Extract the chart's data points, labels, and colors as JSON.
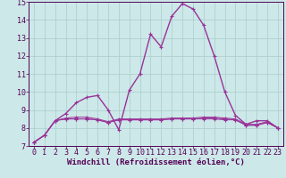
{
  "background_color": "#cce8e8",
  "line_color": "#993399",
  "grid_color": "#aacccc",
  "xlabel": "Windchill (Refroidissement éolien,°C)",
  "xlabel_fontsize": 6.5,
  "tick_fontsize": 6,
  "xlim": [
    -0.5,
    23.5
  ],
  "ylim": [
    7,
    15
  ],
  "yticks": [
    7,
    8,
    9,
    10,
    11,
    12,
    13,
    14,
    15
  ],
  "xticks": [
    0,
    1,
    2,
    3,
    4,
    5,
    6,
    7,
    8,
    9,
    10,
    11,
    12,
    13,
    14,
    15,
    16,
    17,
    18,
    19,
    20,
    21,
    22,
    23
  ],
  "series": [
    [
      7.2,
      7.6,
      8.4,
      8.8,
      9.4,
      9.7,
      9.8,
      9.0,
      7.9,
      10.1,
      11.0,
      13.2,
      12.5,
      14.2,
      14.9,
      14.6,
      13.7,
      12.0,
      10.0,
      8.7,
      8.2,
      8.4,
      8.4,
      8.0
    ],
    [
      7.2,
      7.6,
      8.4,
      8.55,
      8.6,
      8.6,
      8.5,
      8.35,
      8.5,
      8.5,
      8.5,
      8.5,
      8.5,
      8.55,
      8.55,
      8.55,
      8.6,
      8.6,
      8.55,
      8.5,
      8.2,
      8.2,
      8.35,
      8.0
    ],
    [
      7.2,
      7.6,
      8.4,
      8.5,
      8.5,
      8.5,
      8.45,
      8.3,
      8.45,
      8.45,
      8.45,
      8.45,
      8.45,
      8.5,
      8.5,
      8.5,
      8.55,
      8.55,
      8.5,
      8.45,
      8.15,
      8.15,
      8.3,
      8.0
    ],
    [
      7.2,
      7.6,
      8.4,
      8.5,
      8.5,
      8.5,
      8.45,
      8.3,
      8.45,
      8.45,
      8.45,
      8.45,
      8.45,
      8.5,
      8.5,
      8.5,
      8.5,
      8.5,
      8.45,
      8.45,
      8.15,
      8.15,
      8.3,
      8.0
    ]
  ]
}
